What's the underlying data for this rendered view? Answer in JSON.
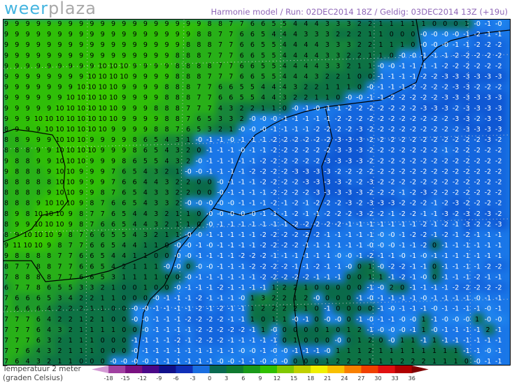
{
  "header": {
    "logo_part1": "weer",
    "logo_part2": "plaza",
    "subtitle": "Harmonie model / Run: 02DEC2014 18Z / Geldig: 03DEC2014 13Z (+19u)"
  },
  "legend": {
    "title_line1": "Temperatuur 2 meter",
    "title_line2": "(graden Celsius)",
    "ticks": [
      "-18",
      "-15",
      "-12",
      "-9",
      "-6",
      "-3",
      "0",
      "3",
      "6",
      "9",
      "12",
      "15",
      "18",
      "21",
      "24",
      "27",
      "30",
      "33",
      "36"
    ],
    "band_start": -21,
    "band_step": 3,
    "band_colors": [
      "#d49ad4",
      "#a040a0",
      "#7a1080",
      "#4a0888",
      "#10108a",
      "#1030b8",
      "#1a6ee0",
      "#0a6a50",
      "#107a30",
      "#1a9a1a",
      "#30c000",
      "#80c800",
      "#c0d000",
      "#f0f000",
      "#f8c000",
      "#f88000",
      "#f04000",
      "#e01010",
      "#b00000",
      "#800000"
    ]
  },
  "map": {
    "rows": [
      "9 9 9 9 9 9 9 9 9 9 9 9 9 9 9 9 9 9 9 8 8 7 7 6 6 5 5 4 4 4 3 3 3 2 2 1 1 1 1 1 0 0 0 1 -0 -1 -0",
      "9 9 9 9 9 9 9 9 9 9 9 9 9 9 9 9 9 9 8 8 7 7 6 6 5 4 4 4 3 3 3 2 2 2 1 1 0 0 0 -0 -0 -0 -0 -1 -2 -1 -1",
      "9 9 9 9 9 9 9 9 9 9 9 9 9 9 9 9 9 8 8 8 7 7 6 6 5 5 4 4 4 4 3 3 3 2 2 1 1 1 0 -0 -0 -0 -1 -1 -2 -2 -2",
      "9 9 9 9 9 9 9 9 9 9 9 9 9 9 9 9 8 8 8 7 7 7 6 6 5 5 4 4 4 4 3 3 2 2 1 1 0 -0 -0 -1 -1 -1 -2 -2 -2 -2 -2",
      "9 9 9 9 9 9 9 9 9 10 10 10 9 9 9 9 8 8 8 8 7 7 6 6 5 5 4 4 4 4 3 3 2 1 1 -0 -0 -1 -1 -1 -1 -2 -2 -2 -2 -2 -2",
      "9 9 9 9 9 9 9 9 10 10 10 10 9 9 9 9 8 8 8 7 7 7 6 6 5 5 4 4 4 3 2 2 1 0 0 -1 -1 -1 -1 -2 -2 -3 -3 -3 -3 -3 -3",
      "9 9 9 9 9 9 9 10 10 10 10 9 9 9 9 8 8 8 7 7 6 6 5 5 4 4 4 3 2 2 1 1 1 0 -0 -1 -1 -1 -2 -2 -2 -2 -3 -3 -2 -2 -2",
      "9 9 9 9 9 9 10 10 10 10 10 9 9 9 9 8 8 8 7 7 6 6 5 5 4 4 3 2 2 1 1 0 -0 -0 -1 -1 -2 -2 -2 -2 -2 -3 -3 -3 -3 -3 -3",
      "9 9 9 9 9 10 10 10 10 10 10 9 9 9 8 8 8 7 7 7 4 3 2 2 1 1 0 -0 -1 -0 -1 -1 -2 -2 -2 -2 -2 -2 -2 -3 -3 -3 -2 -3 -3 -3 -3",
      "9 9 9 10 10 10 10 10 10 10 10 9 9 9 9 8 8 7 6 5 3 3 2 -0 -0 -0 -1 -1 -1 -1 -1 -2 -2 -2 -2 -2 -2 -2 -2 -2 -2 -2 -3 -3 -2 -3 -3",
      "8 9 9 9 10 10 10 10 10 10 9 9 9 9 8 8 7 6 5 3 2 1 -0 -0 -0 -1 -1 -1 -1 -2 -2 -2 -2 -3 -2 -2 -2 -2 -2 -2 -2 -2 -2 -3 -3 -3 -3",
      "8 8 9 9 9 10 10 10 9 9 9 9 8 6 5 4 3 1 -0 -1 -1 -0 -1 -1 -1 -2 -2 -2 -2 -2 -2 -3 -3 -3 -2 -2 -2 -2 -2 -2 -2 -2 -2 -2 -2 -3 -2",
      "8 8 8 9 9 10 10 10 10 9 9 9 8 6 5 4 3 2 0 -1 -1 -1 -0 -1 -1 -2 -2 -2 -2 -2 -2 -3 -3 -3 -2 -2 -2 -2 -2 -2 -2 -1 -2 -2 -2 -2 -2",
      "9 8 8 9 9 10 10 10 9 9 9 8 6 5 5 4 3 2 -0 -1 -1 -1 -1 -1 -2 -2 -2 -2 -2 -2 -3 -3 -3 -3 -2 -2 -2 -2 -2 -2 -2 -2 -2 -2 -2 -2 -2",
      "9 8 8 8 9 10 10 9 9 9 7 6 5 4 3 2 1 -0 -0 -1 -1 -1 -1 -2 -2 -2 -2 -3 -3 -3 -3 -2 -2 -2 -2 -2 -2 -2 -2 -2 -2 -2 -2 -2 -2 -2 -2",
      "8 8 8 8 8 10 10 9 9 9 7 6 6 4 4 3 2 2 0 0 -0 -1 -1 -1 -2 -2 -2 -2 -3 -3 -3 -3 -2 -2 -3 -2 -2 -2 -2 -2 -2 -2 -2 -2 -2 -2 -2",
      "8 8 8 8 9 10 10 9 9 8 7 6 5 4 3 3 2 2 0 0 -0 -1 -1 -1 -1 -2 -2 -2 -2 -3 -3 -3 -3 -3 -2 -2 -2 -1 -2 -3 -2 -2 -2 -2 -2 -2 -2",
      "8 8 8 9 10 10 10 9 8 7 6 6 5 4 3 3 2 -0 -0 -0 -0 -0 -1 -1 -1 -2 -1 -2 -1 -2 -2 -2 -3 -2 -3 -3 -3 -2 -2 -2 -1 -2 -3 -2 -2 -2 -2",
      "8 9 8 10 10 10 9 8 7 7 6 5 4 4 3 2 1 1 0 -0 -0 -0 -0 -0 -1 -1 -1 -2 -1 -1 -2 -2 -2 -3 -2 -2 -1 -2 -2 -1 -1 -3 -2 -3 -2 -3 -2",
      "8 9 9 10 10 10 9 8 7 6 6 5 4 4 3 2 1 1 0 -0 -1 -1 -1 -1 -1 -1 -1 -2 -2 -2 -2 -2 -1 -1 -1 -1 -1 -1 -1 -2 -1 -2 -1 -3 -2 -2 -3",
      "8 9 10 10 10 9 8 7 6 6 5 5 4 3 2 1 1 -0 -0 -1 -1 -1 -1 -1 -2 -2 -2 -2 -2 -2 -1 -1 -1 -1 -1 -0 -0 -1 -2 -2 -1 -2 -1 -2 -1 -1 -1",
      "9 11 10 10 9 8 7 7 6 6 5 4 4 1 1 0 -0 -0 -1 -0 -1 -1 -1 -1 -2 -2 -2 -2 -1 -1 -1 -1 -1 -1 -0 -0 -0 -1 -1 -2 0 -1 -1 -1 -1 -1 -1",
      "9 8 8 8 8 7 7 6 6 5 4 4 1 1 0 0 -0 -0 -1 -1 -1 -1 -2 -2 -2 -1 -1 -1 -1 -1 -1 -0 -0 -1 -2 -1 -1 -0 -1 -0 -1 -1 -1 -1 -1 -1 -1",
      "8 7 7 8 8 7 7 6 6 5 4 2 1 1 1 -0 -0 0 -0 -0 -1 -1 -1 -2 -2 -2 -2 -1 -1 -2 -1 -1 -0 0 1 -0 -2 -2 -1 -1 0 -1 -1 -1 -1 -2 -2",
      "7 8 8 8 8 7 7 6 6 5 3 1 1 1 1 0 0 -0 -1 -1 -1 -1 -1 -1 -2 -2 -2 -2 -2 -1 -1 -1 0 0 1 1 -1 -2 -1 -0 0 -1 -1 -1 -2 -1 -1",
      "6 7 7 8 6 5 5 3 3 2 1 0 0 1 0 0 -0 -1 -1 -1 -2 -1 -1 -1 -1 1 2 2 1 0 0 0 0 0 -1 -0 2 0 -1 -1 -1 -1 -2 -2 -2 -2 -2",
      "7 6 6 6 5 3 4 2 2 1 1 0 0 0 -0 -1 -1 -1 -2 -1 -1 -1 -0 1 3 2 2 1 2 -0 0 0 0 -1 -0 -1 -1 -1 -1 -0 -1 -1 -1 -1 -0 -1 -1",
      "7 6 6 6 4 2 2 2 1 1 0 0 -0 -0 -1 -1 -1 -1 -2 -1 -2 -1 -1 1 2 2 2 2 1 0 -1 0 0 0 0 -1 -0 -1 -1 -1 -0 -1 -1 -1 -1 -0 -1",
      "7 7 7 6 4 2 2 1 2 1 0 0 -0 -0 -1 -1 -1 -2 -2 -2 -2 -1 -1 1 0 1 1 -0 -1 0 -0 -0 0 -1 -0 -1 -1 -0 -0 1 -1 -0 -0 -0 1 -0 -0",
      "7 7 7 6 4 3 2 1 1 1 1 0 0 -0 -1 -1 -1 -1 -2 -2 -2 -2 -2 -1 1 -0 0 0 0 0 1 0 1 2 -1 -0 -0 -0 -1 1 -0 -1 -1 -1 -1 2 -1",
      "7 7 7 6 3 2 1 1 1 0 0 0 -1 -1 -1 -1 -2 -1 -2 -2 -2 -1 -1 -1 -1 -1 0 1 0 0 0 -0 0 1 2 0 -0 1 1 -1 1 -1 -1 -1 -1 -1 -1",
      "7 7 6 4 3 2 1 1 1 0 0 0 -0 -1 -1 -1 -1 -1 -1 -1 -1 -1 -0 -0 -1 -0 -0 -1 -1 -1 -0 1 1 1 2 1 1 1 1 1 1 1 1 -1 -1 -0 -1",
      "7 6 4 3 2 1 1 0 0 0 -0 -0 -0 -0 -1 -1 -1 -1 -1 -1 -0 -0 -1 -1 -0 -0 -0 0 0 0 1 2 2 2 1 1 1 2 2 2 1 1 1 0 -0 -1 -1"
    ]
  }
}
